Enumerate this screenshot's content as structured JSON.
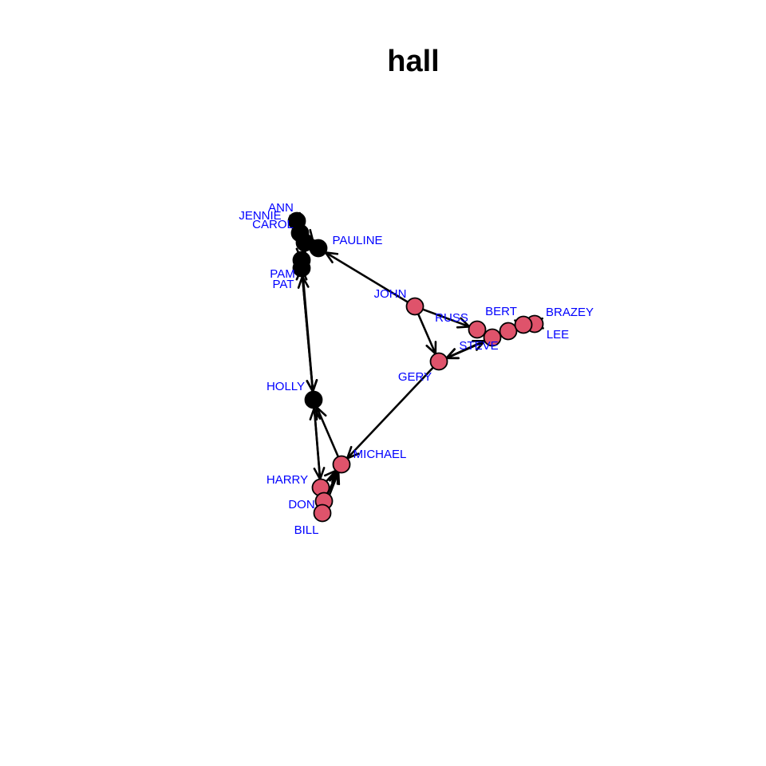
{
  "title": "hall",
  "colors": {
    "female": "#000000",
    "male": "#DF536B",
    "edge": "#000000",
    "label": "#0000FF"
  },
  "nodes": [
    {
      "id": "ANN",
      "label": "ANN",
      "group": "female"
    },
    {
      "id": "JENNIE",
      "label": "JENNIE",
      "group": "female"
    },
    {
      "id": "CAROL",
      "label": "CAROL",
      "group": "female"
    },
    {
      "id": "PAULINE",
      "label": "PAULINE",
      "group": "female"
    },
    {
      "id": "PAM",
      "label": "PAM",
      "group": "female"
    },
    {
      "id": "PAT",
      "label": "PAT",
      "group": "female"
    },
    {
      "id": "HOLLY",
      "label": "HOLLY",
      "group": "female"
    },
    {
      "id": "JOHN",
      "label": "JOHN",
      "group": "male"
    },
    {
      "id": "RUSS",
      "label": "RUSS",
      "group": "male"
    },
    {
      "id": "BERT",
      "label": "BERT",
      "group": "male"
    },
    {
      "id": "BRAZEY",
      "label": "BRAZEY",
      "group": "male"
    },
    {
      "id": "LEE",
      "label": "LEE",
      "group": "male"
    },
    {
      "id": "STEVE",
      "label": "STEVE",
      "group": "male"
    },
    {
      "id": "GERY",
      "label": "GERY",
      "group": "male"
    },
    {
      "id": "MICHAEL",
      "label": "MICHAEL",
      "group": "male"
    },
    {
      "id": "HARRY",
      "label": "HARRY",
      "group": "male"
    },
    {
      "id": "DON",
      "label": "DON",
      "group": "male"
    },
    {
      "id": "BILL",
      "label": "BILL",
      "group": "male"
    }
  ],
  "edges": [
    [
      "JOHN",
      "PAULINE"
    ],
    [
      "JOHN",
      "GERY"
    ],
    [
      "JOHN",
      "RUSS"
    ],
    [
      "RUSS",
      "STEVE"
    ],
    [
      "STEVE",
      "RUSS"
    ],
    [
      "STEVE",
      "BERT"
    ],
    [
      "BERT",
      "STEVE"
    ],
    [
      "BERT",
      "LEE"
    ],
    [
      "LEE",
      "BERT"
    ],
    [
      "LEE",
      "BRAZEY"
    ],
    [
      "BRAZEY",
      "LEE"
    ],
    [
      "STEVE",
      "GERY"
    ],
    [
      "GERY",
      "STEVE"
    ],
    [
      "BERT",
      "GERY"
    ],
    [
      "GERY",
      "MICHAEL"
    ],
    [
      "MICHAEL",
      "HOLLY"
    ],
    [
      "HOLLY",
      "HARRY"
    ],
    [
      "HARRY",
      "HOLLY"
    ],
    [
      "HARRY",
      "MICHAEL"
    ],
    [
      "DON",
      "MICHAEL"
    ],
    [
      "BILL",
      "MICHAEL"
    ],
    [
      "BILL",
      "HARRY"
    ],
    [
      "DON",
      "HARRY"
    ],
    [
      "HOLLY",
      "PAT"
    ],
    [
      "PAT",
      "HOLLY"
    ],
    [
      "PAM",
      "HOLLY"
    ],
    [
      "ANN",
      "JENNIE"
    ],
    [
      "JENNIE",
      "ANN"
    ],
    [
      "CAROL",
      "ANN"
    ],
    [
      "CAROL",
      "PAULINE"
    ],
    [
      "PAULINE",
      "JENNIE"
    ],
    [
      "PAM",
      "CAROL"
    ],
    [
      "PAT",
      "PAM"
    ],
    [
      "PAM",
      "PAT"
    ],
    [
      "ANN",
      "PAULINE"
    ]
  ]
}
